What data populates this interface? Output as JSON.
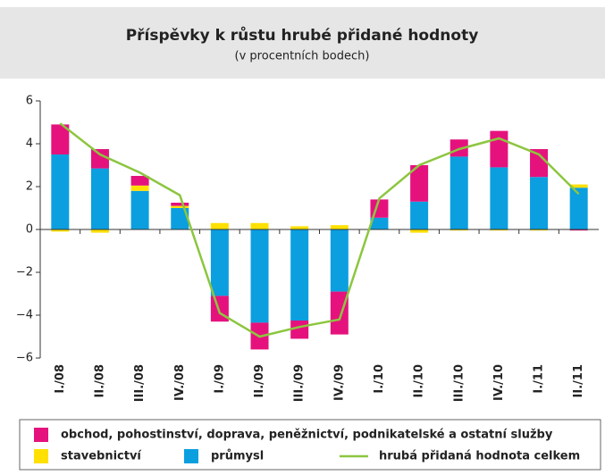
{
  "chart_data": {
    "type": "bar",
    "title": "Příspěvky k růstu hrubé přidané hodnoty",
    "subtitle": "(v procentních bodech)",
    "categories": [
      "I./08",
      "II./08",
      "III./08",
      "IV./08",
      "I./09",
      "II./09",
      "III./09",
      "IV./09",
      "I./10",
      "II./10",
      "III./10",
      "IV./10",
      "I./11",
      "II./11"
    ],
    "series": [
      {
        "name": "průmysl",
        "color": "#0b9fe0",
        "kind": "bar",
        "values": [
          3.5,
          2.85,
          1.8,
          1.0,
          -3.1,
          -4.35,
          -4.25,
          -2.9,
          0.55,
          1.3,
          3.4,
          2.9,
          2.45,
          1.95
        ]
      },
      {
        "name": "stavebnictví",
        "color": "#ffe000",
        "kind": "bar",
        "values": [
          -0.1,
          -0.15,
          0.25,
          0.1,
          0.3,
          0.3,
          0.15,
          0.2,
          0.0,
          -0.15,
          -0.05,
          -0.05,
          -0.05,
          0.15
        ]
      },
      {
        "name": "obchod, pohostinství, doprava, peněžnictví, podnikatelské a ostatní služby",
        "color": "#e5127d",
        "kind": "bar",
        "values": [
          1.4,
          0.9,
          0.45,
          0.15,
          -1.2,
          -1.25,
          -0.85,
          -2.0,
          0.85,
          1.7,
          0.8,
          1.7,
          1.3,
          -0.05
        ]
      },
      {
        "name": "hrubá přidaná hodnota celkem",
        "color": "#8cc63f",
        "kind": "line",
        "values": [
          4.95,
          3.5,
          2.65,
          1.6,
          -3.9,
          -5.0,
          -4.55,
          -4.2,
          1.45,
          3.0,
          3.75,
          4.25,
          3.5,
          1.65
        ]
      }
    ],
    "ylim": [
      -6,
      6
    ],
    "yticks": [
      {
        "value": -6,
        "label": "−6"
      },
      {
        "value": -4,
        "label": "−4"
      },
      {
        "value": -2,
        "label": "−2"
      },
      0,
      2,
      4,
      6
    ]
  }
}
